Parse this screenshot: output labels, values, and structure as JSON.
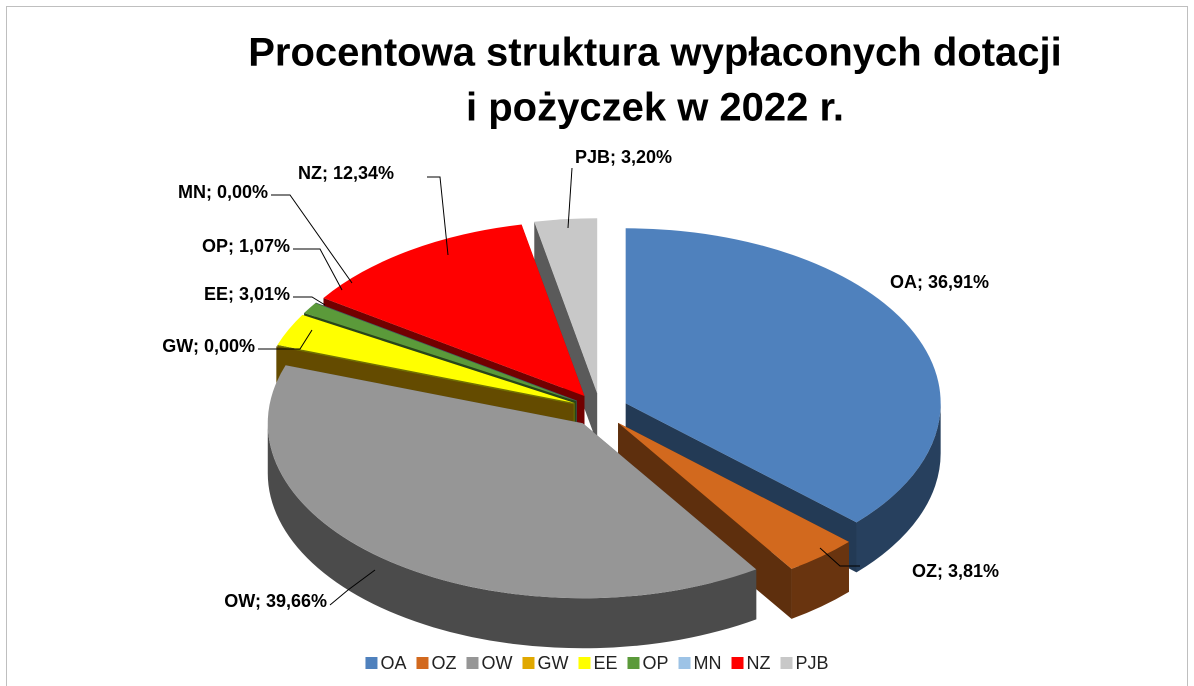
{
  "chart_data": {
    "type": "pie3d",
    "title": "Procentowa struktura wypłaconych dotacji",
    "subtitle": "i pożyczek w 2022 r.",
    "categories": [
      "OA",
      "OZ",
      "OW",
      "GW",
      "EE",
      "OP",
      "MN",
      "NZ",
      "PJB"
    ],
    "values": [
      36.91,
      3.81,
      39.66,
      0.0,
      3.01,
      1.07,
      0.0,
      12.34,
      3.2
    ],
    "value_labels": [
      "OA; 36,91%",
      "OZ; 3,81%",
      "OW; 39,66%",
      "GW; 0,00%",
      "EE; 3,01%",
      "OP; 1,07%",
      "MN; 0,00%",
      "NZ; 12,34%",
      "PJB; 3,20%"
    ],
    "colors": [
      "#4f81bd",
      "#d2691e",
      "#969696",
      "#e0a800",
      "#ffff00",
      "#5b9a3a",
      "#9dc3e6",
      "#ff0000",
      "#c8c8c8"
    ],
    "legend": "bottom"
  }
}
